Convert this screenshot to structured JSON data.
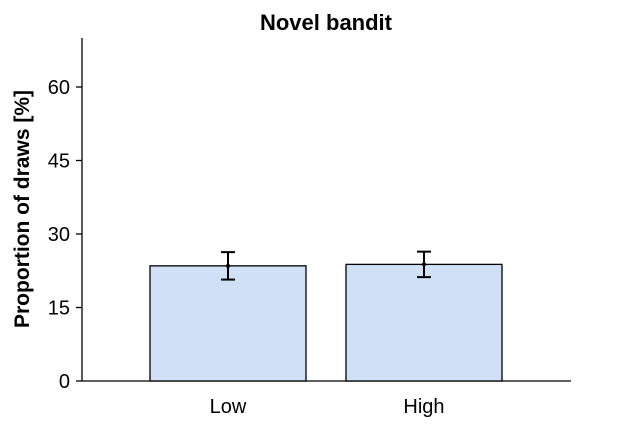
{
  "chart_data": {
    "type": "bar",
    "title": "Novel bandit",
    "xlabel": "",
    "ylabel": "Proportion of draws [%]",
    "categories": [
      "Low",
      "High"
    ],
    "values": [
      23.5,
      23.8
    ],
    "error_low": [
      20.7,
      21.2
    ],
    "error_high": [
      26.3,
      26.4
    ],
    "ylim": [
      0,
      70
    ],
    "yticks": [
      0,
      15,
      30,
      45,
      60
    ],
    "bar_color": "#cfe0f7",
    "bar_edge_color": "#000000",
    "grid": false,
    "legend": "none"
  }
}
